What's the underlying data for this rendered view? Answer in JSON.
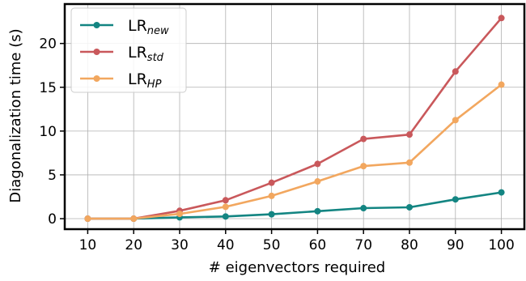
{
  "chart_data": {
    "type": "line",
    "title": "",
    "xlabel": "# eigenvectors required",
    "ylabel": "Diagonalization time (s)",
    "x": [
      10,
      20,
      30,
      40,
      50,
      60,
      70,
      80,
      90,
      100
    ],
    "xlim": [
      5,
      105
    ],
    "ylim": [
      -1.2,
      24.5
    ],
    "yticks": [
      0,
      5,
      10,
      15,
      20
    ],
    "grid": true,
    "legend_position": "top-left",
    "series": [
      {
        "name": "LR",
        "subscript": "new",
        "color": "#138582",
        "values": [
          0.0,
          0.0,
          0.15,
          0.25,
          0.5,
          0.85,
          1.2,
          1.3,
          2.2,
          3.0
        ]
      },
      {
        "name": "LR",
        "subscript": "std",
        "color": "#c9585b",
        "values": [
          0.0,
          0.0,
          0.9,
          2.1,
          4.1,
          6.25,
          9.1,
          9.6,
          16.8,
          22.9
        ]
      },
      {
        "name": "LR",
        "subscript": "HP",
        "color": "#f2a75f",
        "values": [
          0.0,
          0.0,
          0.55,
          1.35,
          2.6,
          4.25,
          6.0,
          6.4,
          11.25,
          15.3
        ]
      }
    ]
  }
}
